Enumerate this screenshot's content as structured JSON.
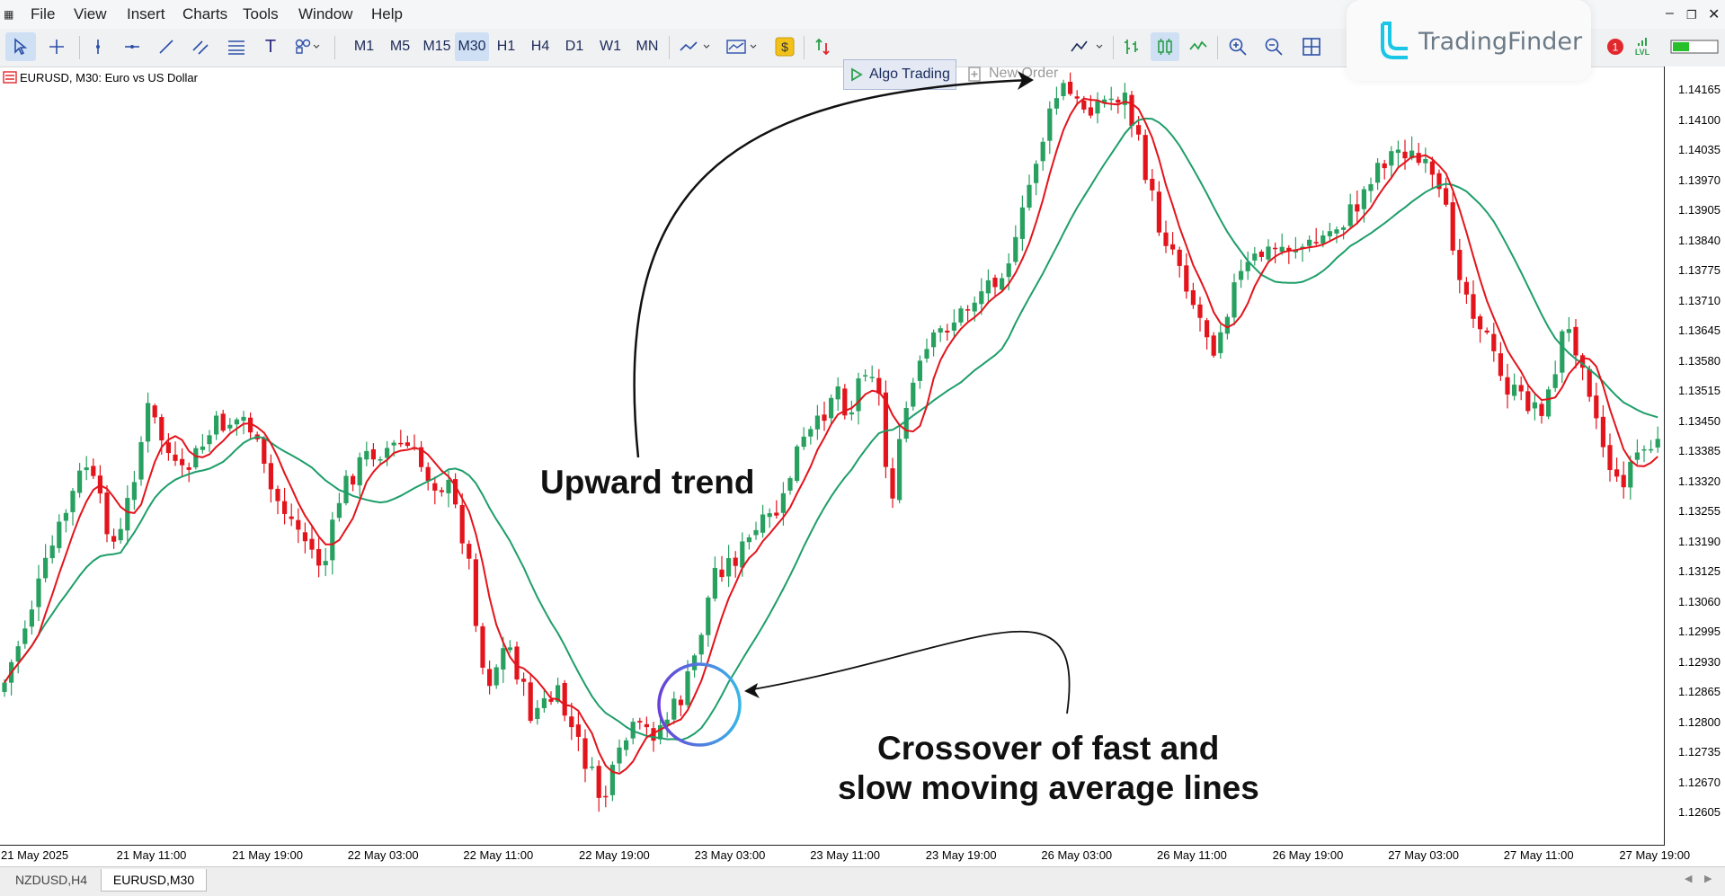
{
  "menu": [
    "File",
    "View",
    "Insert",
    "Charts",
    "Tools",
    "Window",
    "Help"
  ],
  "toolbar": {
    "timeframes": [
      "M1",
      "M5",
      "M15",
      "M30",
      "H1",
      "H4",
      "D1",
      "W1",
      "MN"
    ],
    "active_timeframe": "M30",
    "algo_trading": "Algo Trading",
    "new_order": "New Order",
    "notification_count": "1",
    "lvl_label": "LVL"
  },
  "logo": {
    "text": "TradingFinder"
  },
  "chart": {
    "title": "EURUSD, M30:  Euro vs US Dollar",
    "price_labels": [
      "1.14165",
      "1.14100",
      "1.14035",
      "1.13970",
      "1.13905",
      "1.13840",
      "1.13775",
      "1.13710",
      "1.13645",
      "1.13580",
      "1.13515",
      "1.13450",
      "1.13385",
      "1.13320",
      "1.13255",
      "1.13190",
      "1.13125",
      "1.13060",
      "1.12995",
      "1.12930",
      "1.12865",
      "1.12800",
      "1.12735",
      "1.12670",
      "1.12605"
    ],
    "time_labels": [
      "21 May 2025",
      "21 May 11:00",
      "21 May 19:00",
      "22 May 03:00",
      "22 May 11:00",
      "22 May 19:00",
      "23 May 03:00",
      "23 May 11:00",
      "23 May 19:00",
      "26 May 03:00",
      "26 May 11:00",
      "26 May 19:00",
      "27 May 03:00",
      "27 May 11:00",
      "27 May 19:00"
    ],
    "colors": {
      "bull": "#27a060",
      "bear": "#e3141c",
      "fast_ma": "#e3141c",
      "slow_ma": "#1e9e6a"
    }
  },
  "annotations": {
    "upward_trend": "Upward trend",
    "crossover_line1": "Crossover of fast and",
    "crossover_line2": "slow moving average lines"
  },
  "tabs": [
    "NZDUSD,H4",
    "EURUSD,M30"
  ],
  "active_tab": "EURUSD,M30"
}
